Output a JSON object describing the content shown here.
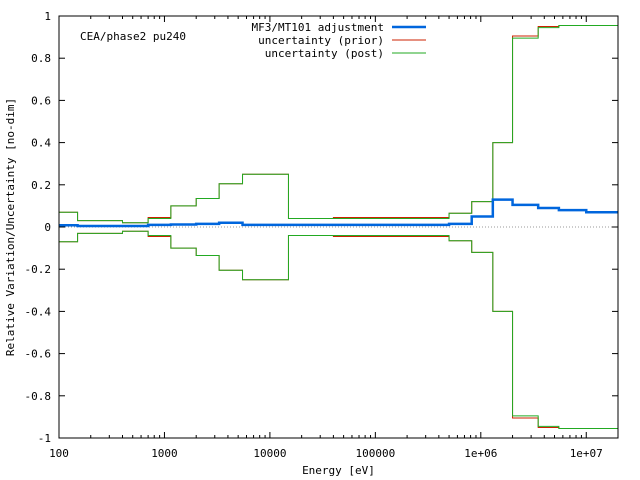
{
  "chart_data": {
    "type": "line",
    "title": "",
    "annotation": "CEA/phase2 pu240",
    "xlabel": "Energy [eV]",
    "ylabel": "Relative Variation/Uncertainty [no-dim]",
    "xscale": "log",
    "xlim": [
      100,
      20000000
    ],
    "ylim": [
      -1,
      1
    ],
    "xticks": [
      {
        "value": 100,
        "label": "100"
      },
      {
        "value": 1000,
        "label": "1000"
      },
      {
        "value": 10000,
        "label": "10000"
      },
      {
        "value": 100000,
        "label": "100000"
      },
      {
        "value": 1000000,
        "label": "1e+06"
      },
      {
        "value": 10000000,
        "label": "1e+07"
      }
    ],
    "yticks": [
      {
        "value": 1,
        "label": "1"
      },
      {
        "value": 0.8,
        "label": "0.8"
      },
      {
        "value": 0.6,
        "label": "0.6"
      },
      {
        "value": 0.4,
        "label": "0.4"
      },
      {
        "value": 0.2,
        "label": "0.2"
      },
      {
        "value": 0,
        "label": "0"
      },
      {
        "value": -0.2,
        "label": "-0.2"
      },
      {
        "value": -0.4,
        "label": "-0.4"
      },
      {
        "value": -0.6,
        "label": "-0.6"
      },
      {
        "value": -0.8,
        "label": "-0.8"
      },
      {
        "value": -1,
        "label": "-1"
      }
    ],
    "zero_line": true,
    "legend_position": "top-right",
    "group_edges": [
      100,
      150,
      400,
      700,
      1150,
      2000,
      3300,
      5500,
      15000,
      40000,
      500000,
      820000,
      1300000,
      2000000,
      3500000,
      5500000,
      10000000,
      20000000
    ],
    "series": [
      {
        "name": "MF3/MT101 adjustment",
        "color": "#0066dd",
        "width": 2.5,
        "mirror": false,
        "values": [
          0.008,
          0.005,
          0.005,
          0.01,
          0.012,
          0.015,
          0.02,
          0.01,
          0.01,
          0.01,
          0.015,
          0.05,
          0.13,
          0.105,
          0.09,
          0.08,
          0.07
        ]
      },
      {
        "name": "uncertainty (prior)",
        "color": "#cc2200",
        "width": 1,
        "mirror": true,
        "values": [
          0.07,
          0.03,
          0.02,
          0.045,
          0.1,
          0.135,
          0.205,
          0.25,
          0.04,
          0.045,
          0.065,
          0.12,
          0.4,
          0.905,
          0.95,
          0.955,
          0.955
        ]
      },
      {
        "name": "uncertainty (post)",
        "color": "#22aa22",
        "width": 1,
        "mirror": true,
        "values": [
          0.07,
          0.03,
          0.02,
          0.04,
          0.1,
          0.135,
          0.205,
          0.25,
          0.04,
          0.04,
          0.065,
          0.12,
          0.4,
          0.895,
          0.945,
          0.955,
          0.955
        ]
      }
    ]
  }
}
